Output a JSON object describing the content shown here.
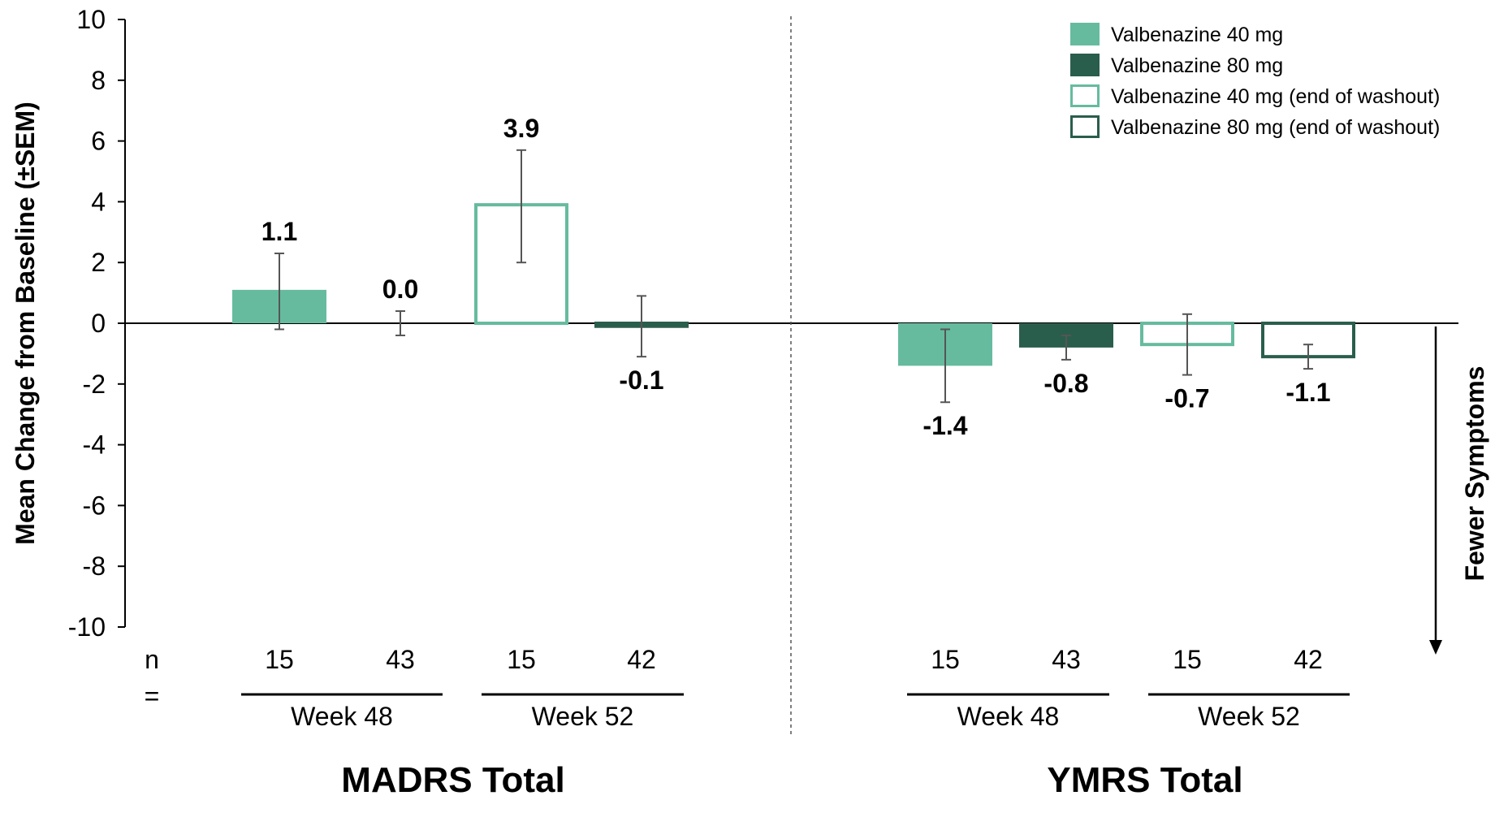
{
  "chart_data": {
    "type": "bar",
    "ylabel": "Mean Change from Baseline (±SEM)",
    "ylim": [
      -10,
      10
    ],
    "yticks": [
      10,
      8,
      6,
      4,
      2,
      0,
      -2,
      -4,
      -6,
      -8,
      -10
    ],
    "side_annotation": "Fewer Symptoms",
    "n_label": "n =",
    "legend_position": "top-right",
    "series": [
      {
        "name": "Valbenazine 40 mg",
        "style": "filled",
        "color": "#66bb9f"
      },
      {
        "name": "Valbenazine 80 mg",
        "style": "filled",
        "color": "#2a5e4c"
      },
      {
        "name": "Valbenazine 40 mg (end of washout)",
        "style": "outline",
        "color": "#66bb9f"
      },
      {
        "name": "Valbenazine 80 mg (end of washout)",
        "style": "outline",
        "color": "#2a5e4c"
      }
    ],
    "panels": [
      {
        "title": "MADRS Total",
        "groups": [
          {
            "label": "Week 48",
            "bars": [
              {
                "series": 0,
                "value": 1.1,
                "label": "1.1",
                "err_low": -0.2,
                "err_high": 2.3,
                "n": "15"
              },
              {
                "series": 1,
                "value": 0.0,
                "label": "0.0",
                "err_low": -0.4,
                "err_high": 0.4,
                "n": "43"
              }
            ]
          },
          {
            "label": "Week 52",
            "bars": [
              {
                "series": 2,
                "value": 3.9,
                "label": "3.9",
                "err_low": 2.0,
                "err_high": 5.7,
                "n": "15"
              },
              {
                "series": 3,
                "value": -0.1,
                "label": "-0.1",
                "err_low": -1.1,
                "err_high": 0.9,
                "n": "42"
              }
            ]
          }
        ]
      },
      {
        "title": "YMRS Total",
        "groups": [
          {
            "label": "Week 48",
            "bars": [
              {
                "series": 0,
                "value": -1.4,
                "label": "-1.4",
                "err_low": -2.6,
                "err_high": -0.2,
                "n": "15"
              },
              {
                "series": 1,
                "value": -0.8,
                "label": "-0.8",
                "err_low": -1.2,
                "err_high": -0.4,
                "n": "43"
              }
            ]
          },
          {
            "label": "Week 52",
            "bars": [
              {
                "series": 2,
                "value": -0.7,
                "label": "-0.7",
                "err_low": -1.7,
                "err_high": 0.3,
                "n": "15"
              },
              {
                "series": 3,
                "value": -1.1,
                "label": "-1.1",
                "err_low": -1.5,
                "err_high": -0.7,
                "n": "42"
              }
            ]
          }
        ]
      }
    ]
  }
}
